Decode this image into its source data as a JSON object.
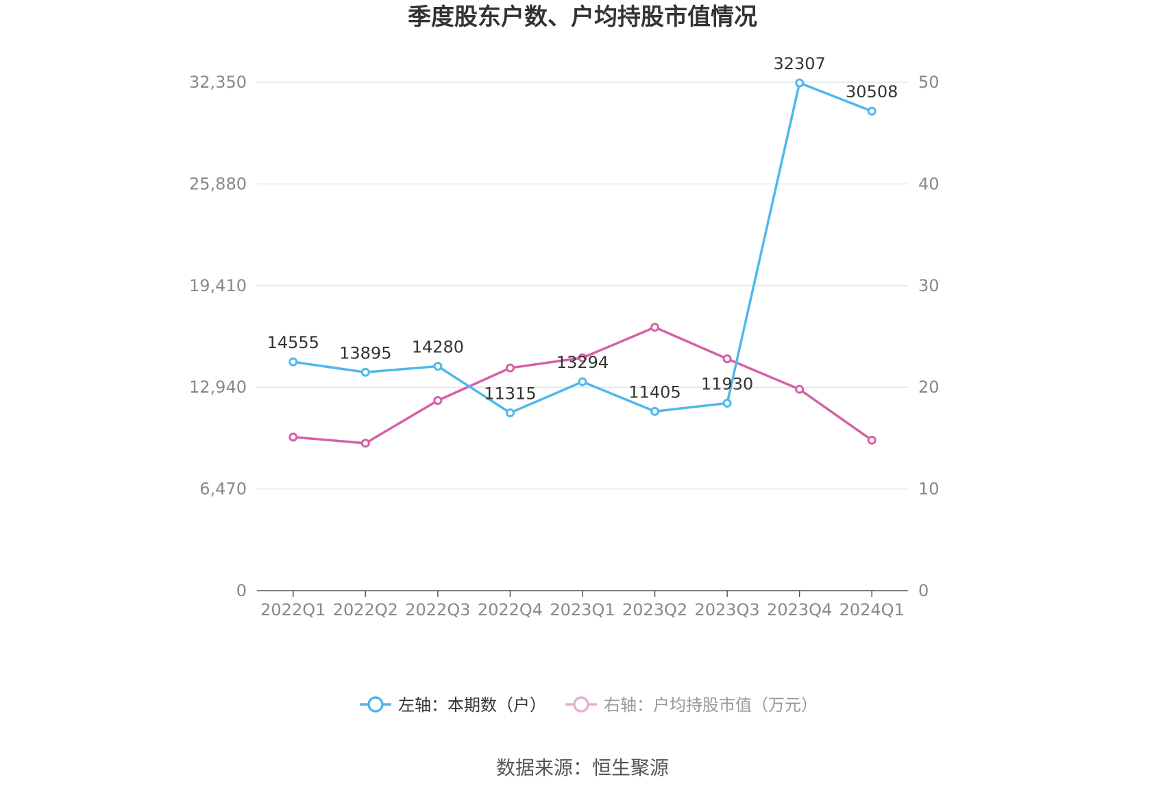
{
  "chart_data": {
    "type": "line",
    "title": "季度股东户数、户均持股市值情况",
    "categories": [
      "2022Q1",
      "2022Q2",
      "2022Q3",
      "2022Q4",
      "2023Q1",
      "2023Q2",
      "2023Q3",
      "2023Q4",
      "2024Q1"
    ],
    "left_axis": {
      "ticks": [
        0,
        6470,
        12940,
        19410,
        25880,
        32350
      ],
      "tick_labels": [
        "0",
        "6,470",
        "12,940",
        "19,410",
        "25,880",
        "32,350"
      ],
      "ylim": [
        0,
        32350
      ]
    },
    "right_axis": {
      "ticks": [
        0,
        10,
        20,
        30,
        40,
        50
      ],
      "tick_labels": [
        "0",
        "10",
        "20",
        "30",
        "40",
        "50"
      ],
      "ylim": [
        0,
        50
      ]
    },
    "series": [
      {
        "name": "左轴：本期数（户）",
        "axis": "left",
        "color": "#4fb8ec",
        "values": [
          14555,
          13895,
          14280,
          11315,
          13294,
          11405,
          11930,
          32307,
          30508
        ],
        "labels": [
          "14555",
          "13895",
          "14280",
          "11315",
          "13294",
          "11405",
          "11930",
          "32307",
          "30508"
        ]
      },
      {
        "name": "右轴：户均持股市值（万元）",
        "axis": "right",
        "color": "#d660a8",
        "values": [
          15.1,
          14.5,
          18.7,
          21.9,
          22.9,
          25.9,
          22.8,
          19.8,
          14.8
        ]
      }
    ],
    "grid": true,
    "legend_position": "bottom"
  },
  "source": "数据来源：恒生聚源"
}
